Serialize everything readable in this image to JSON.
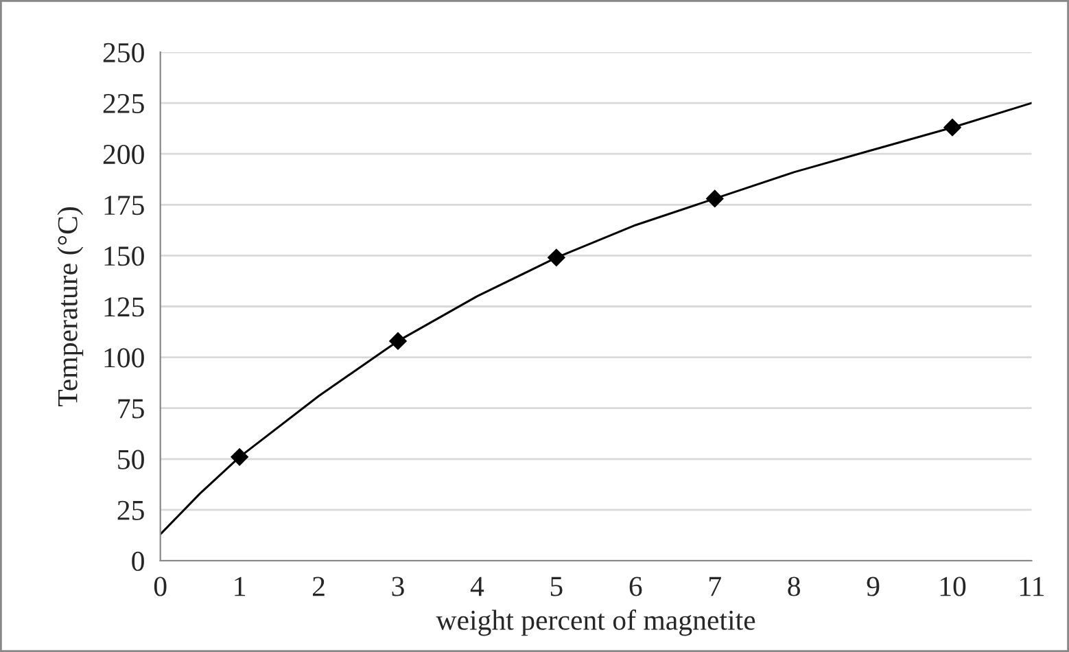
{
  "chart_data": {
    "type": "scatter",
    "xlabel": "weight percent of magnetite",
    "ylabel": "Temperature (°C)",
    "xlim": [
      0,
      11
    ],
    "ylim": [
      0,
      250
    ],
    "xticks": [
      0,
      1,
      2,
      3,
      4,
      5,
      6,
      7,
      8,
      9,
      10,
      11
    ],
    "yticks": [
      0,
      25,
      50,
      75,
      100,
      125,
      150,
      175,
      200,
      225,
      250
    ],
    "grid": "y",
    "legend": false,
    "marker": "diamond",
    "series": [
      {
        "color": "#000000",
        "x": [
          1,
          3,
          5,
          7,
          10
        ],
        "values": [
          51,
          108,
          149,
          178,
          213
        ]
      },
      {
        "type": "line",
        "color": "#000000",
        "marker": "none",
        "x": [
          0,
          0.5,
          1,
          2,
          3,
          4,
          5,
          6,
          7,
          8,
          9,
          10,
          11
        ],
        "values": [
          13,
          33,
          51,
          81,
          108,
          130,
          149,
          165,
          178,
          191,
          202,
          213,
          225
        ]
      }
    ]
  }
}
